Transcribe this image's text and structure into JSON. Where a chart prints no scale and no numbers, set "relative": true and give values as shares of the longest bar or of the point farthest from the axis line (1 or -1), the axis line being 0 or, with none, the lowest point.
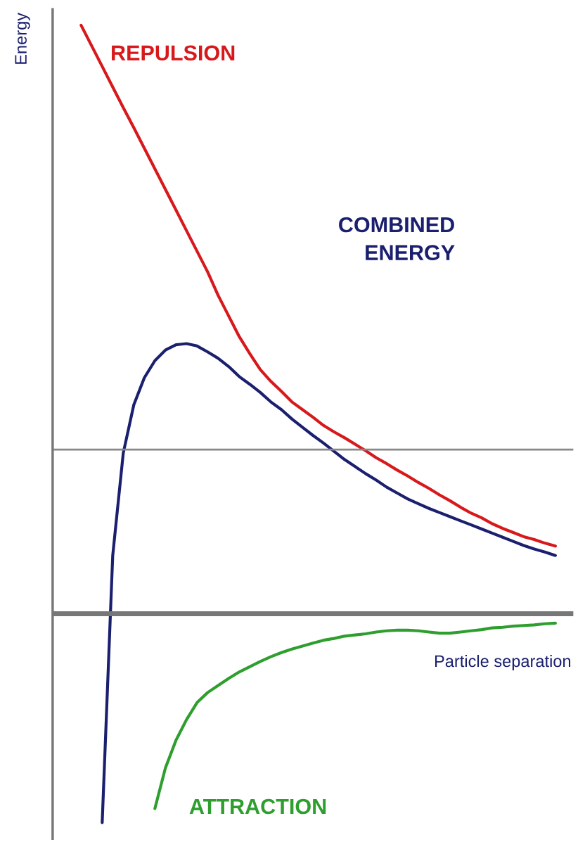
{
  "chart_data": {
    "type": "line",
    "relative": true,
    "xlabel": "Particle separation",
    "ylabel": "Energy",
    "categories": [
      null,
      null,
      null,
      null,
      null,
      null,
      null,
      null,
      null,
      null,
      null,
      null,
      null,
      null,
      null,
      null,
      null,
      null,
      null,
      null,
      null,
      null,
      null,
      null,
      null,
      null,
      null,
      null,
      null,
      null,
      null,
      null,
      null,
      null,
      null,
      null,
      null,
      null,
      null,
      null,
      null,
      null,
      null,
      null,
      null,
      null
    ],
    "series": [
      {
        "name": "REPULSION",
        "color": "#d7191c",
        "values": [
          1.0,
          0.965,
          0.93,
          0.895,
          0.86,
          0.826,
          0.791,
          0.756,
          0.721,
          0.686,
          0.651,
          0.616,
          0.581,
          0.541,
          0.506,
          0.471,
          0.442,
          0.415,
          0.395,
          0.378,
          0.36,
          0.347,
          0.334,
          0.32,
          0.309,
          0.299,
          0.288,
          0.277,
          0.265,
          0.255,
          0.244,
          0.234,
          0.223,
          0.213,
          0.202,
          0.192,
          0.181,
          0.171,
          0.163,
          0.153,
          0.145,
          0.138,
          0.131,
          0.126,
          0.12,
          0.115
        ]
      },
      {
        "name": "COMBINED\nENERGY",
        "color": "#1a1f6e",
        "values": [
          null,
          null,
          -0.355,
          0.099,
          0.273,
          0.355,
          0.401,
          0.43,
          0.448,
          0.457,
          0.459,
          0.455,
          0.445,
          0.434,
          0.42,
          0.403,
          0.39,
          0.376,
          0.36,
          0.347,
          0.331,
          0.317,
          0.303,
          0.29,
          0.276,
          0.262,
          0.25,
          0.238,
          0.227,
          0.215,
          0.205,
          0.195,
          0.187,
          0.179,
          0.172,
          0.165,
          0.158,
          0.151,
          0.144,
          0.137,
          0.13,
          0.123,
          0.116,
          0.11,
          0.105,
          0.099
        ]
      },
      {
        "name": "ATTRACTION",
        "color": "#2e9e2e",
        "values": [
          null,
          null,
          null,
          null,
          null,
          null,
          null,
          -0.331,
          -0.262,
          -0.215,
          -0.18,
          -0.151,
          -0.134,
          -0.122,
          -0.11,
          -0.099,
          -0.09,
          -0.081,
          -0.073,
          -0.066,
          -0.06,
          -0.055,
          -0.05,
          -0.045,
          -0.042,
          -0.038,
          -0.036,
          -0.034,
          -0.031,
          -0.029,
          -0.028,
          -0.028,
          -0.029,
          -0.031,
          -0.033,
          -0.033,
          -0.031,
          -0.029,
          -0.027,
          -0.024,
          -0.023,
          -0.021,
          -0.02,
          -0.019,
          -0.017,
          -0.016
        ]
      }
    ],
    "ref_lines": [
      {
        "axis": "y",
        "value": 0.279,
        "color": "#888888",
        "line_style": "solid"
      }
    ],
    "legend": false,
    "marker": "none",
    "line_style": "solid"
  }
}
